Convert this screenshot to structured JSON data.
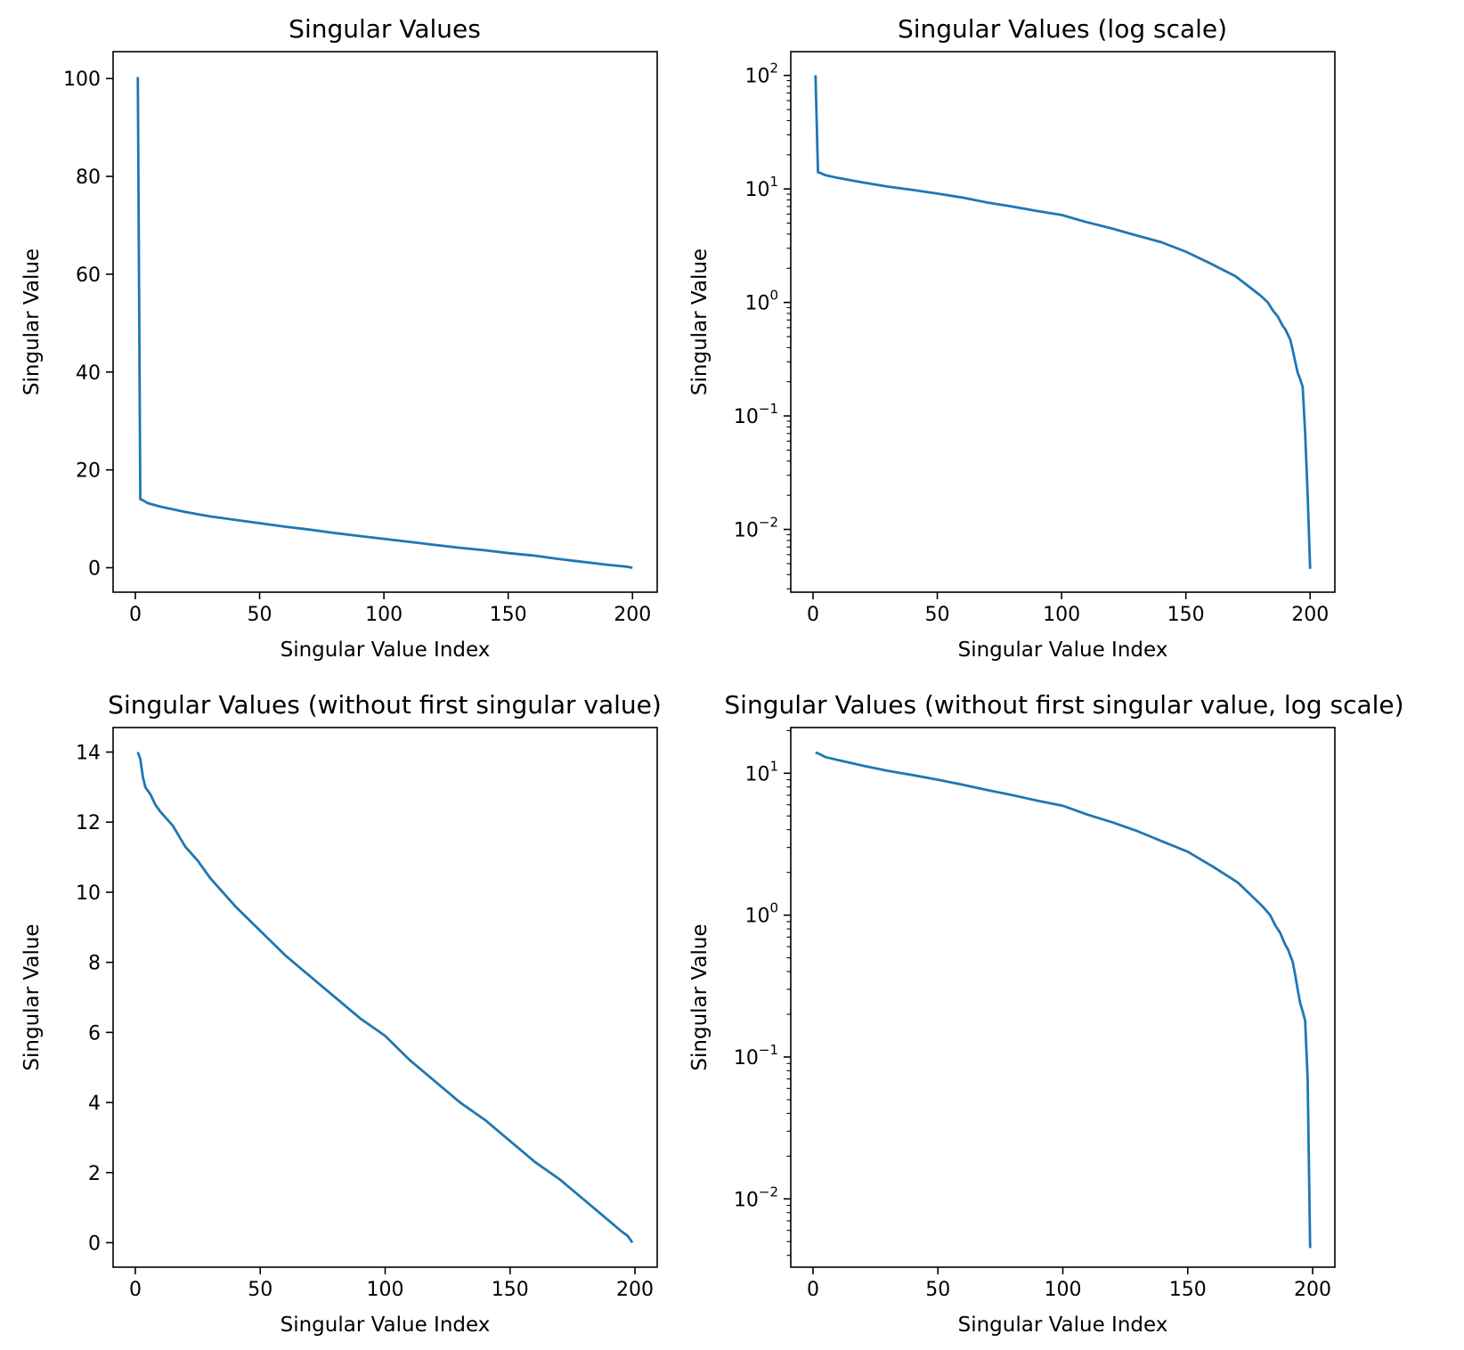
{
  "colors": {
    "series": "#1f77b4",
    "axis": "#000000",
    "background": "#ffffff"
  },
  "chart_data": [
    {
      "type": "line",
      "title": "Singular Values",
      "xlabel": "Singular Value Index",
      "ylabel": "Singular Value",
      "yscale": "linear",
      "xlim": [
        -8.95,
        209.95
      ],
      "ylim": [
        -5.0,
        105.5
      ],
      "xticks": [
        0,
        50,
        100,
        150,
        200
      ],
      "yticks": [
        0,
        20,
        40,
        60,
        80,
        100
      ],
      "grid": false,
      "series": [
        {
          "x": [
            1,
            2,
            3,
            5,
            10,
            20,
            30,
            40,
            50,
            60,
            70,
            80,
            90,
            100,
            110,
            120,
            130,
            140,
            150,
            160,
            170,
            180,
            190,
            195,
            198,
            199,
            200
          ],
          "values": [
            100.3,
            14.0,
            13.8,
            13.2,
            12.5,
            11.4,
            10.5,
            9.8,
            9.1,
            8.4,
            7.8,
            7.1,
            6.5,
            5.9,
            5.3,
            4.7,
            4.1,
            3.6,
            3.0,
            2.5,
            1.8,
            1.2,
            0.6,
            0.35,
            0.2,
            0.07,
            0.005
          ]
        }
      ]
    },
    {
      "type": "line",
      "title": "Singular Values (log scale)",
      "xlabel": "Singular Value Index",
      "ylabel": "Singular Value",
      "yscale": "log",
      "xlim": [
        -8.95,
        209.95
      ],
      "ylim": [
        0.0028,
        162
      ],
      "xticks": [
        0,
        50,
        100,
        150,
        200
      ],
      "yticks": [
        {
          "value": 0.01,
          "base": "10",
          "exp": "−2"
        },
        {
          "value": 0.1,
          "base": "10",
          "exp": "−1"
        },
        {
          "value": 1,
          "base": "10",
          "exp": "0"
        },
        {
          "value": 10,
          "base": "10",
          "exp": "1"
        },
        {
          "value": 100,
          "base": "10",
          "exp": "2"
        }
      ],
      "grid": false,
      "series": [
        {
          "x": [
            1,
            2,
            3,
            5,
            10,
            20,
            30,
            40,
            50,
            60,
            70,
            80,
            90,
            100,
            110,
            120,
            130,
            140,
            150,
            160,
            170,
            175,
            180,
            183,
            185,
            187,
            189,
            190,
            192,
            193,
            194,
            195,
            196,
            197,
            198,
            199,
            200
          ],
          "values": [
            100.3,
            14.0,
            13.8,
            13.2,
            12.5,
            11.4,
            10.5,
            9.8,
            9.1,
            8.4,
            7.6,
            7.0,
            6.4,
            5.9,
            5.1,
            4.5,
            3.9,
            3.4,
            2.8,
            2.2,
            1.7,
            1.4,
            1.15,
            1.0,
            0.85,
            0.75,
            0.62,
            0.58,
            0.47,
            0.38,
            0.3,
            0.24,
            0.21,
            0.18,
            0.07,
            0.02,
            0.0045
          ]
        }
      ]
    },
    {
      "type": "line",
      "title": "Singular Values (without first singular value)",
      "xlabel": "Singular Value Index",
      "ylabel": "Singular Value",
      "yscale": "linear",
      "xlim": [
        -8.9,
        208.9
      ],
      "ylim": [
        -0.7,
        14.7
      ],
      "xticks": [
        0,
        50,
        100,
        150,
        200
      ],
      "yticks": [
        0,
        2,
        4,
        6,
        8,
        10,
        12,
        14
      ],
      "grid": false,
      "series": [
        {
          "x": [
            1,
            2,
            3,
            4,
            6,
            8,
            10,
            15,
            20,
            25,
            30,
            35,
            40,
            50,
            60,
            70,
            80,
            90,
            100,
            110,
            120,
            130,
            140,
            150,
            160,
            170,
            180,
            190,
            195,
            197,
            198,
            199
          ],
          "values": [
            14.0,
            13.8,
            13.3,
            13.0,
            12.8,
            12.5,
            12.3,
            11.9,
            11.3,
            10.9,
            10.4,
            10.0,
            9.6,
            8.9,
            8.2,
            7.6,
            7.0,
            6.4,
            5.9,
            5.2,
            4.6,
            4.0,
            3.5,
            2.9,
            2.3,
            1.8,
            1.2,
            0.6,
            0.3,
            0.2,
            0.1,
            0.0
          ]
        }
      ]
    },
    {
      "type": "line",
      "title": "Singular Values (without first singular value, log scale)",
      "xlabel": "Singular Value Index",
      "ylabel": "Singular Value",
      "yscale": "log",
      "xlim": [
        -8.9,
        208.9
      ],
      "ylim": [
        0.0033,
        21
      ],
      "xticks": [
        0,
        50,
        100,
        150,
        200
      ],
      "yticks": [
        {
          "value": 0.01,
          "base": "10",
          "exp": "−2"
        },
        {
          "value": 0.1,
          "base": "10",
          "exp": "−1"
        },
        {
          "value": 1,
          "base": "10",
          "exp": "0"
        },
        {
          "value": 10,
          "base": "10",
          "exp": "1"
        }
      ],
      "grid": false,
      "series": [
        {
          "x": [
            1,
            2,
            5,
            10,
            20,
            30,
            40,
            50,
            60,
            70,
            80,
            90,
            100,
            110,
            120,
            130,
            140,
            150,
            160,
            170,
            175,
            180,
            183,
            185,
            187,
            189,
            190,
            192,
            193,
            194,
            195,
            196,
            197,
            198,
            199
          ],
          "values": [
            14.0,
            13.8,
            13.0,
            12.4,
            11.3,
            10.4,
            9.7,
            9.0,
            8.3,
            7.6,
            7.0,
            6.4,
            5.9,
            5.1,
            4.5,
            3.9,
            3.3,
            2.8,
            2.2,
            1.7,
            1.4,
            1.15,
            1.0,
            0.85,
            0.75,
            0.62,
            0.58,
            0.47,
            0.38,
            0.3,
            0.24,
            0.21,
            0.18,
            0.07,
            0.0045
          ]
        }
      ]
    }
  ]
}
